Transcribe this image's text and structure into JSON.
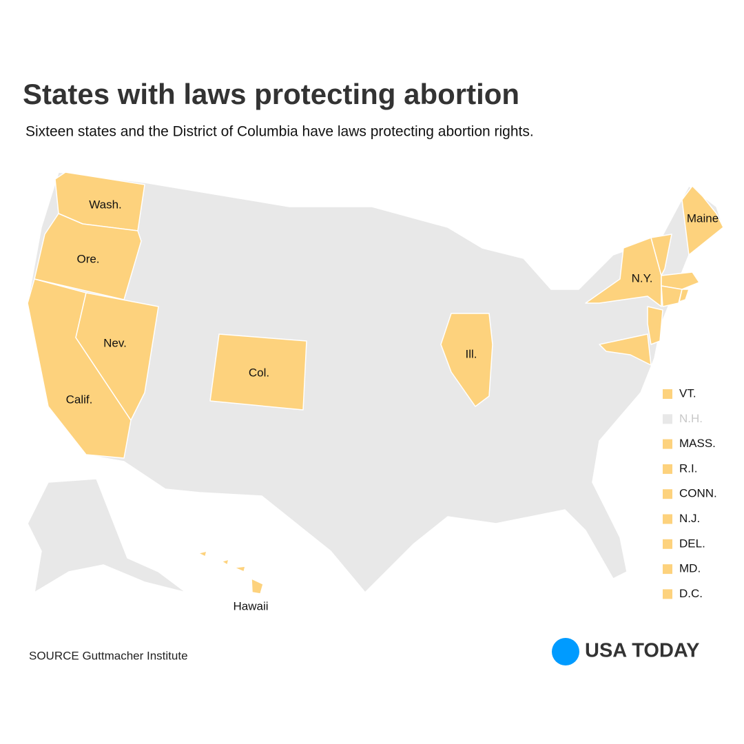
{
  "title": "States with laws protecting abortion",
  "subtitle": "Sixteen states and the District of Columbia have laws protecting abortion rights.",
  "colors": {
    "protected": "#fdd27d",
    "other": "#e8e8e8",
    "muted_text": "#c8c8c8",
    "brand": "#009bff"
  },
  "map_labels": [
    {
      "label": "Wash."
    },
    {
      "label": "Ore."
    },
    {
      "label": "Calif."
    },
    {
      "label": "Nev."
    },
    {
      "label": "Col."
    },
    {
      "label": "Ill."
    },
    {
      "label": "N.Y."
    },
    {
      "label": "Maine"
    },
    {
      "label": "Hawaii"
    }
  ],
  "legend": [
    {
      "label": "VT.",
      "protected": true
    },
    {
      "label": "N.H.",
      "protected": false
    },
    {
      "label": "MASS.",
      "protected": true
    },
    {
      "label": "R.I.",
      "protected": true
    },
    {
      "label": "CONN.",
      "protected": true
    },
    {
      "label": "N.J.",
      "protected": true
    },
    {
      "label": "DEL.",
      "protected": true
    },
    {
      "label": "MD.",
      "protected": true
    },
    {
      "label": "D.C.",
      "protected": true
    }
  ],
  "source": "SOURCE Guttmacher Institute",
  "brand": "USA TODAY"
}
